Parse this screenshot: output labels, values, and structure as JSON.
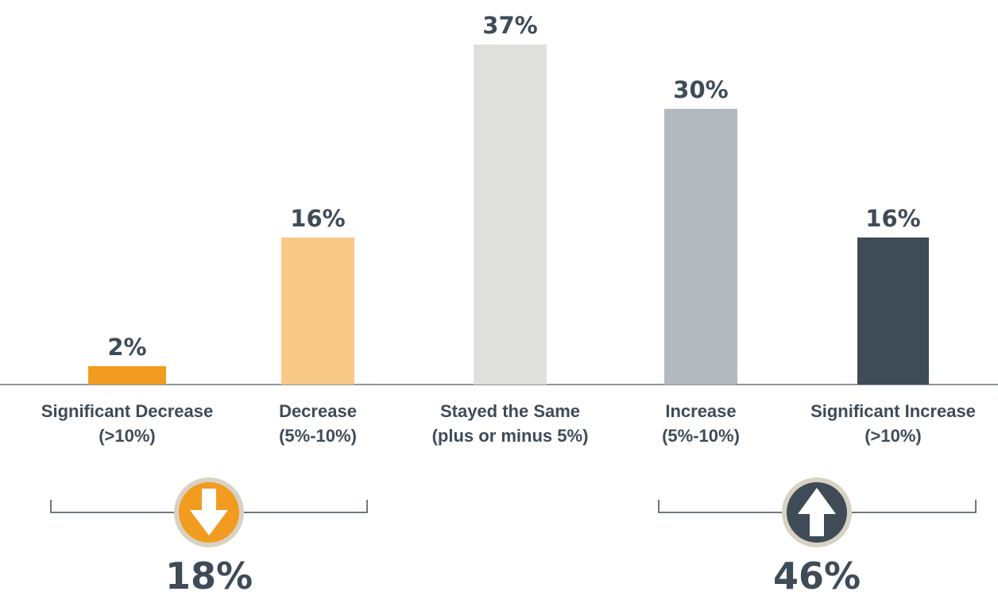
{
  "chart_data": {
    "type": "bar",
    "title": "",
    "xlabel": "",
    "ylabel": "",
    "ylim": [
      0,
      37
    ],
    "grid": false,
    "legend": "none",
    "categories": [
      [
        "Significant Decrease",
        "(>10%)"
      ],
      [
        "Decrease",
        "(5%-10%)"
      ],
      [
        "Stayed the Same",
        "(plus or minus 5%)"
      ],
      [
        "Increase",
        "(5%-10%)"
      ],
      [
        "Significant Increase",
        "(>10%)"
      ]
    ],
    "values": [
      2,
      16,
      37,
      30,
      16
    ],
    "value_labels": [
      "2%",
      "16%",
      "37%",
      "30%",
      "16%"
    ],
    "colors": [
      "#f29b21",
      "#f7c886",
      "#e0e1df",
      "#b4b8bf",
      "#3f4b56"
    ],
    "summary": [
      {
        "direction": "decrease",
        "icon": "arrow-down-icon",
        "label": "18%",
        "value": 18,
        "color": "#f29b21"
      },
      {
        "direction": "increase",
        "icon": "arrow-up-icon",
        "label": "46%",
        "value": 46,
        "color": "#3f4b56"
      }
    ]
  },
  "colors": {
    "text": "#3e4c58",
    "axis": "#8f959b",
    "ring": "#d8d2c2"
  }
}
